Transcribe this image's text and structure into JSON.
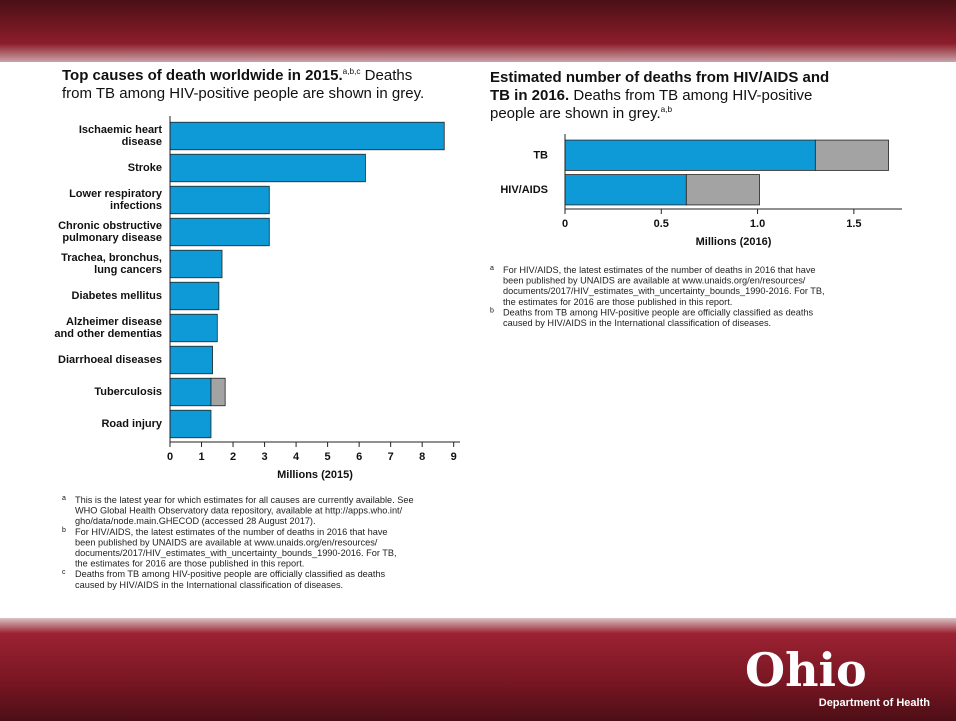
{
  "chart_data": [
    {
      "type": "bar",
      "orientation": "horizontal",
      "stacked": true,
      "title": [
        {
          "text": "Top causes of death worldwide in 2015.",
          "style": "bold"
        },
        {
          "text": "a,b,c",
          "style": "sup"
        },
        {
          "text": " Deaths\nfrom TB among HIV-positive people are shown in grey.",
          "style": "normal"
        }
      ],
      "categories": [
        "Ischaemic heart\ndisease",
        "Stroke",
        "Lower respiratory\ninfections",
        "Chronic obstructive\npulmonary disease",
        "Trachea, bronchus,\nlung cancers",
        "Diabetes mellitus",
        "Alzheimer disease\nand other dementias",
        "Diarrhoeal diseases",
        "Tuberculosis",
        "Road injury"
      ],
      "series": [
        {
          "color": "#0d9ad6",
          "values": [
            8.7,
            6.2,
            3.15,
            3.15,
            1.65,
            1.55,
            1.5,
            1.35,
            1.3,
            1.3
          ]
        },
        {
          "color": "#a3a3a3",
          "values": [
            null,
            null,
            null,
            null,
            null,
            null,
            null,
            null,
            0.45,
            null
          ]
        }
      ],
      "xlim": [
        0,
        9.2
      ],
      "xticks": [
        0,
        1,
        2,
        3,
        4,
        5,
        6,
        7,
        8,
        9
      ],
      "xlabel": "Millions (2015)",
      "footnotes": [
        {
          "marker": "a",
          "text": "This is the latest year for which estimates for all causes are currently available. See\nWHO Global Health Observatory data repository, available at http://apps.who.int/\ngho/data/node.main.GHECOD (accessed 28 August 2017)."
        },
        {
          "marker": "b",
          "text": "For HIV/AIDS, the latest estimates of the number of deaths in 2016 that have\nbeen published by UNAIDS are available at www.unaids.org/en/resources/\ndocuments/2017/HIV_estimates_with_uncertainty_bounds_1990-2016. For TB,\nthe estimates for 2016 are those published in this report."
        },
        {
          "marker": "c",
          "text": "Deaths from TB among HIV-positive people are officially classified as deaths\ncaused by HIV/AIDS in the International classification of diseases."
        }
      ]
    },
    {
      "type": "bar",
      "orientation": "horizontal",
      "stacked": true,
      "title": [
        {
          "text": "Estimated number of deaths from HIV/AIDS and\nTB in 2016.",
          "style": "bold"
        },
        {
          "text": " Deaths from TB among HIV-positive\npeople are shown in grey.",
          "style": "normal"
        },
        {
          "text": "a,b",
          "style": "sup"
        }
      ],
      "categories": [
        "TB",
        "HIV/AIDS"
      ],
      "series": [
        {
          "color": "#0d9ad6",
          "values": [
            1.3,
            0.63
          ]
        },
        {
          "color": "#a3a3a3",
          "values": [
            0.38,
            0.38
          ]
        }
      ],
      "xlim": [
        0,
        1.75
      ],
      "xticks": [
        0,
        0.5,
        {
          "value": 1,
          "label": "1.0"
        },
        1.5
      ],
      "xlabel": "Millions (2016)",
      "footnotes": [
        {
          "marker": "a",
          "text": "For HIV/AIDS, the latest estimates of the number of deaths in 2016 that have\nbeen published by UNAIDS are available at www.unaids.org/en/resources/\ndocuments/2017/HIV_estimates_with_uncertainty_bounds_1990-2016. For TB,\nthe estimates for 2016 are those published in this report."
        },
        {
          "marker": "b",
          "text": "Deaths from TB among HIV-positive people are officially classified as deaths\ncaused by HIV/AIDS in the International classification of diseases."
        }
      ]
    }
  ],
  "logo": {
    "name": "Ohio",
    "subtitle": "Department of Health"
  }
}
